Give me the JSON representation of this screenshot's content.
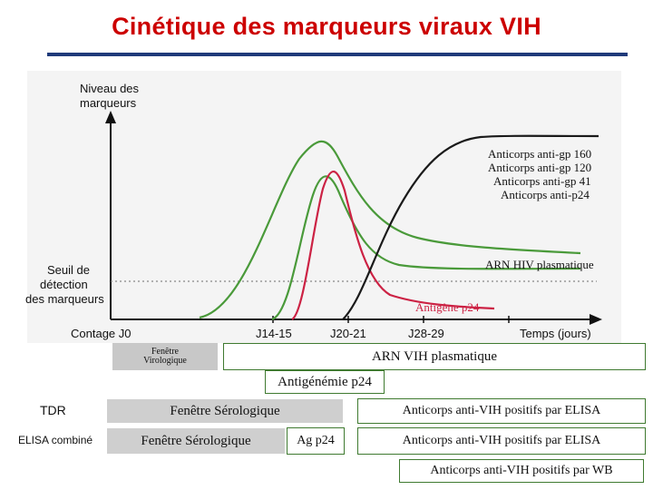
{
  "title": "Cinétique des marqueurs viraux VIH",
  "diagram": {
    "y_axis_label_1": "Niveau des",
    "y_axis_label_2": "marqueurs",
    "threshold_label_1": "Seuil de",
    "threshold_label_2": "détection",
    "threshold_label_3": "des marqueurs",
    "x_axis_label": "Temps (jours)",
    "x_ticks": [
      "Contage J0",
      "J14-15",
      "J20-21",
      "J28-29"
    ],
    "antibody_labels": [
      "Anticorps anti-gp 160",
      "Anticorps anti-gp 120",
      "Anticorps anti-gp 41",
      "Anticorps anti-p24"
    ],
    "rna_label": "ARN HIV plasmatique",
    "p24_label": "Antigène p24",
    "colors": {
      "antibodies": "#1a1a1a",
      "rna": "#4a9a3a",
      "p24": "#cc2244",
      "threshold": "#888888"
    }
  },
  "windows": {
    "viro_1": "Fenêtre",
    "viro_2": "Virologique",
    "rna_box": "ARN VIH plasmatique",
    "p24_box": "Antigénémie p24"
  },
  "rows": {
    "tdr_label": "TDR",
    "tdr_window": "Fenêtre Sérologique",
    "tdr_result": "Anticorps anti-VIH positifs par ELISA",
    "elisa_label": "ELISA combiné",
    "elisa_window": "Fenêtre Sérologique",
    "elisa_ag": "Ag p24",
    "elisa_result": "Anticorps anti-VIH positifs par ELISA",
    "wb_result": "Anticorps anti-VIH positifs par WB"
  }
}
